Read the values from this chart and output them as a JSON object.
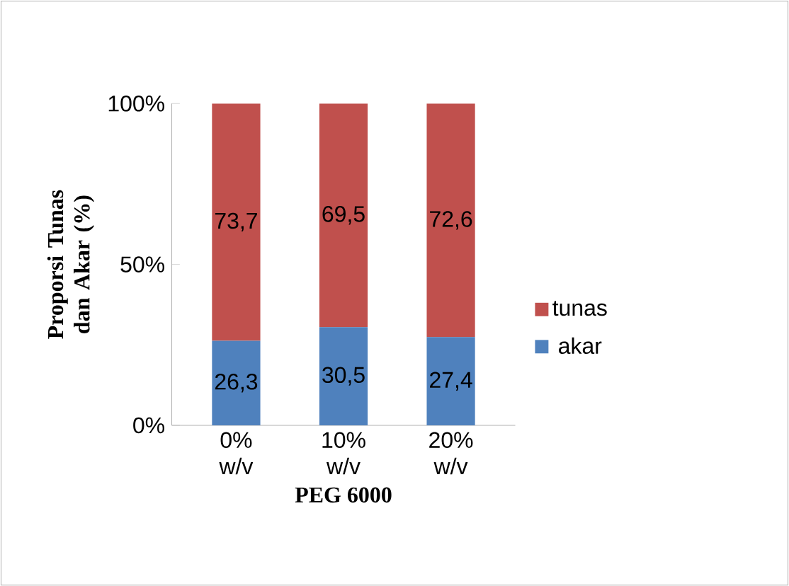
{
  "chart_data": {
    "type": "bar",
    "stacked": true,
    "xlabel": "PEG 6000",
    "ylabel": "Proporsi Tunas dan Akar (%)",
    "categories": [
      "0% w/v",
      "10% w/v",
      "20% w/v"
    ],
    "series": [
      {
        "name": "akar",
        "color": "#4f81bd",
        "values": [
          26.3,
          30.5,
          27.4
        ],
        "value_labels": [
          "26,3",
          "30,5",
          "27,4"
        ]
      },
      {
        "name": "tunas",
        "color": "#c0504d",
        "values": [
          73.7,
          69.5,
          72.6
        ],
        "value_labels": [
          "73,7",
          "69,5",
          "72,6"
        ]
      }
    ],
    "ylim": [
      0,
      100
    ],
    "yticks": [
      {
        "value": 0,
        "label": "0%"
      },
      {
        "value": 50,
        "label": "50%"
      },
      {
        "value": 100,
        "label": "100%"
      }
    ],
    "legend": "right"
  }
}
